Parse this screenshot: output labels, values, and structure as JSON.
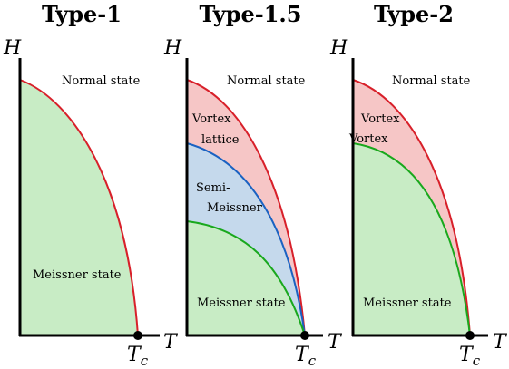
{
  "colors": {
    "green_fill": "#c8ecc5",
    "red_fill": "#f6c6c6",
    "blue_fill": "#c5d9ec",
    "red_curve": "#d8202a",
    "blue_curve": "#1a62c2",
    "green_curve": "#19a81d",
    "axis": "#000000"
  },
  "axis_labels": {
    "y": "H",
    "x": "T",
    "tc_main": "T",
    "tc_sub": "c"
  },
  "panels": [
    {
      "title": "Type-1",
      "regions": {
        "normal": "Normal state",
        "meissner": "Meissner state"
      }
    },
    {
      "title": "Type-1.5",
      "regions": {
        "normal": "Normal state",
        "vortex_line1": "Vortex",
        "vortex_line2": "lattice",
        "semi_line1": "Semi-",
        "semi_line2": "Meissner",
        "meissner": "Meissner state"
      }
    },
    {
      "title": "Type-2",
      "regions": {
        "normal": "Normal state",
        "vortex_upper": "Vortex",
        "vortex_lower": "Vortex",
        "meissner": "Meissner state"
      }
    }
  ]
}
